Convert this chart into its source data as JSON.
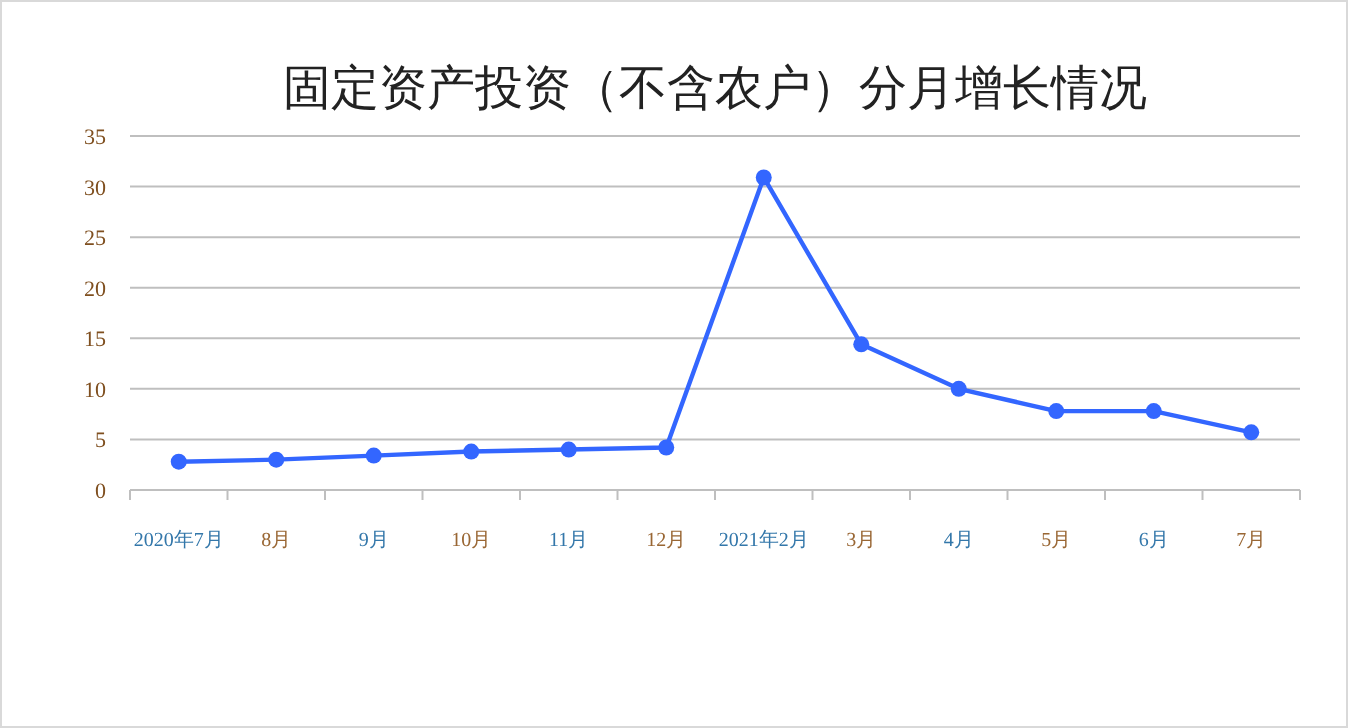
{
  "chart_data": {
    "type": "line",
    "title": "固定资产投资（不含农户）分月增长情况",
    "categories": [
      "2020年7月",
      "8月",
      "9月",
      "10月",
      "11月",
      "12月",
      "2021年2月",
      "3月",
      "4月",
      "5月",
      "6月",
      "7月"
    ],
    "series": [
      {
        "color": "#3366ff",
        "values": [
          2.8,
          3.0,
          3.4,
          3.8,
          4.0,
          4.2,
          30.9,
          14.4,
          10.0,
          7.8,
          7.8,
          5.7
        ]
      }
    ],
    "ylim": [
      0,
      35
    ],
    "yticks": [
      0,
      5,
      10,
      15,
      20,
      25,
      30,
      35
    ],
    "grid": "y",
    "marker": "circle"
  }
}
